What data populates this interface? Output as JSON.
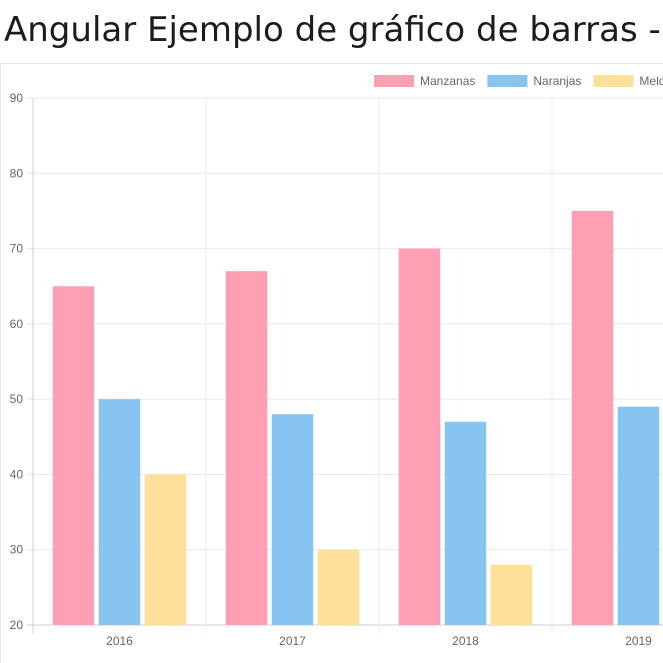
{
  "page": {
    "title": "Angular Ejemplo de gráfico de barras -"
  },
  "chart_data": {
    "type": "bar",
    "title": "",
    "xlabel": "",
    "ylabel": "",
    "categories": [
      "2016",
      "2017",
      "2018",
      "2019"
    ],
    "series": [
      {
        "name": "Manzanas",
        "color": "#ff9fb4",
        "values": [
          65,
          67,
          70,
          75
        ]
      },
      {
        "name": "Naranjas",
        "color": "#88c4f0",
        "values": [
          50,
          48,
          47,
          49
        ]
      },
      {
        "name": "Melo",
        "color": "#fee09a",
        "values": [
          40,
          30,
          28,
          null
        ]
      }
    ],
    "ylim": [
      20,
      90
    ],
    "yticks": [
      "20",
      "30",
      "40",
      "50",
      "60",
      "70",
      "80",
      "90"
    ],
    "grid": true,
    "legend_position": "top-right"
  }
}
